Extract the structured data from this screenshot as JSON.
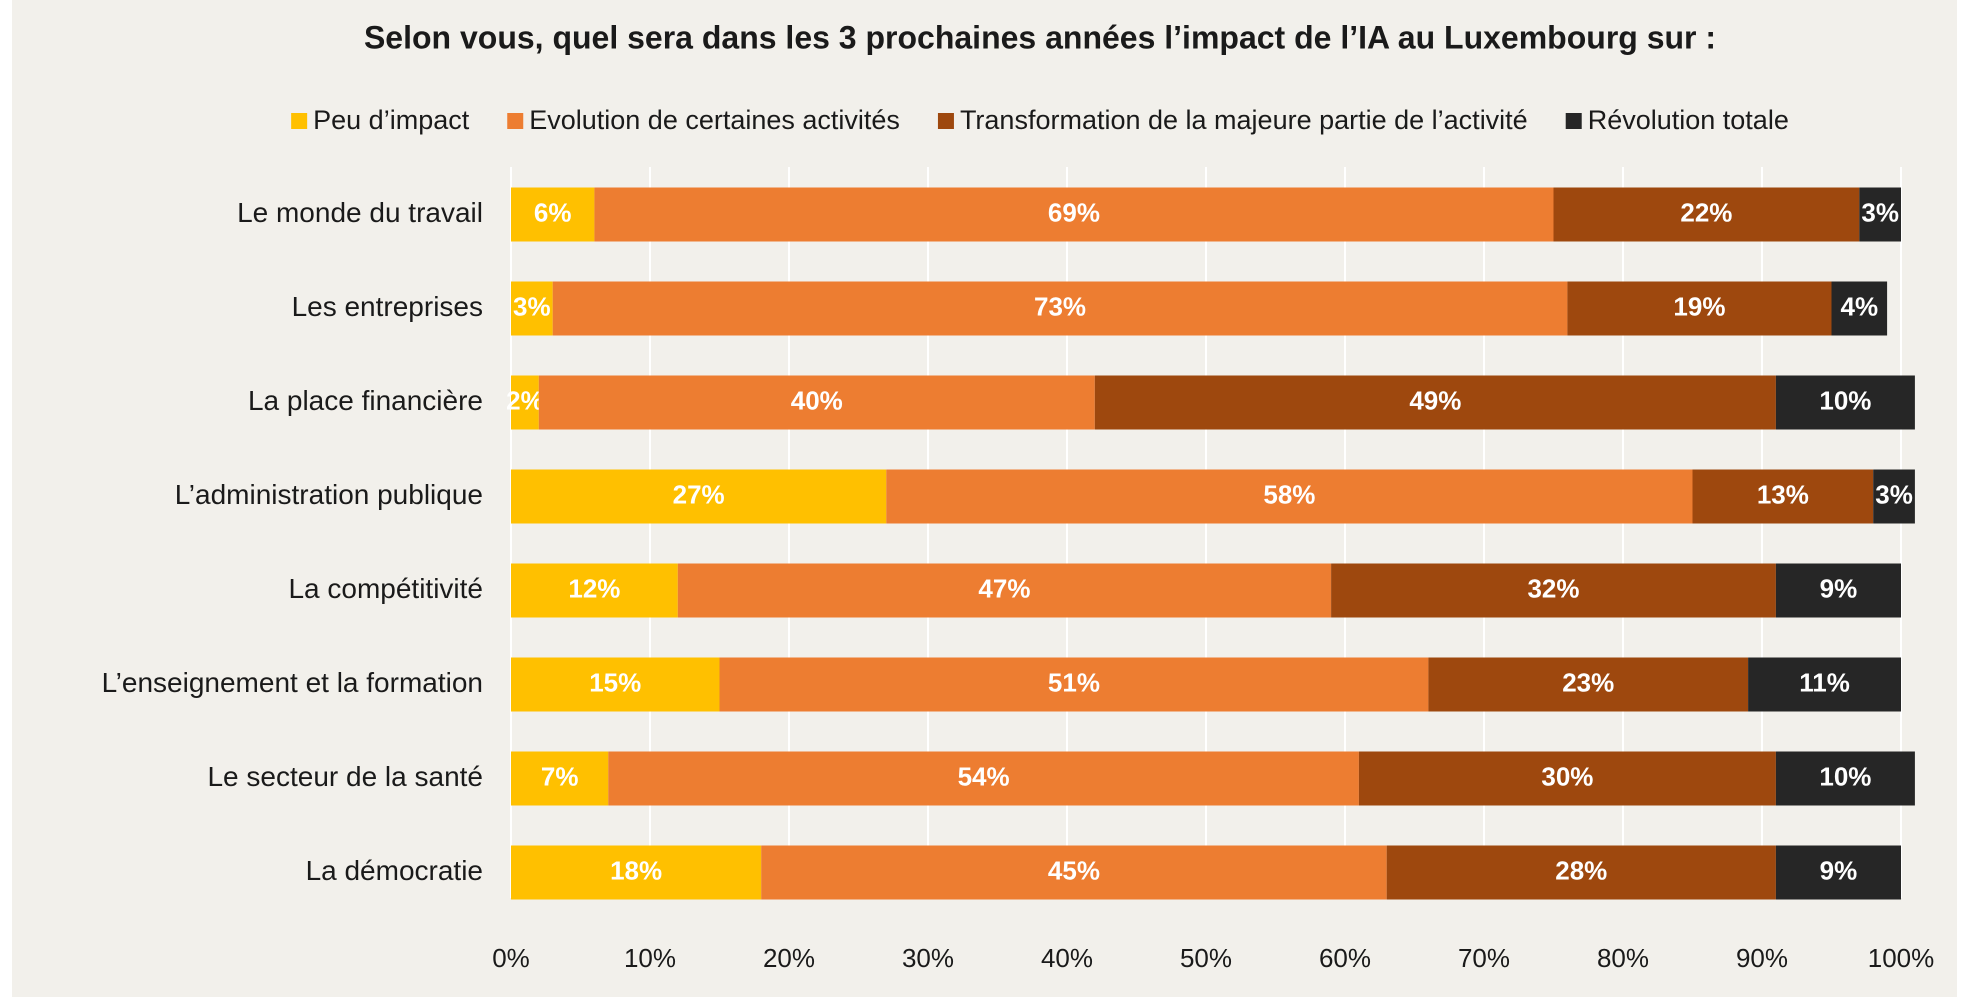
{
  "chart_data": {
    "type": "stacked-bar-horizontal",
    "title": "Selon vous, quel sera dans les 3 prochaines années l’impact de l’IA au Luxembourg sur :",
    "categories": [
      "Le monde du travail",
      "Les entreprises",
      "La place financière",
      "L’administration publique",
      "La compétitivité",
      "L’enseignement et la formation",
      "Le secteur de la santé",
      "La démocratie"
    ],
    "series": [
      {
        "name": "Peu d’impact",
        "color": "#ffc000",
        "values": [
          6,
          3,
          2,
          27,
          12,
          15,
          7,
          18
        ],
        "value_labels": [
          "6%",
          "3%",
          "2%",
          "27%",
          "12%",
          "15%",
          "7%",
          "18%"
        ]
      },
      {
        "name": "Evolution de certaines activités",
        "color": "#ed7d31",
        "values": [
          69,
          73,
          40,
          58,
          47,
          51,
          54,
          45
        ],
        "value_labels": [
          "69%",
          "73%",
          "40%",
          "58%",
          "47%",
          "51%",
          "54%",
          "45%"
        ]
      },
      {
        "name": "Transformation de la majeure partie de l’activité",
        "color": "#9e480e",
        "values": [
          22,
          19,
          49,
          13,
          32,
          23,
          30,
          28
        ],
        "value_labels": [
          "22%",
          "19%",
          "49%",
          "13%",
          "32%",
          "23%",
          "30%",
          "28%"
        ]
      },
      {
        "name": "Révolution totale",
        "color": "#262626",
        "values": [
          3,
          4,
          10,
          3,
          9,
          11,
          10,
          9
        ],
        "value_labels": [
          "3%",
          "4%",
          "10%",
          "3%",
          "9%",
          "11%",
          "10%",
          "9%"
        ]
      }
    ],
    "xlim": [
      0,
      100
    ],
    "xticks": [
      {
        "value": 0,
        "label": "0%"
      },
      {
        "value": 10,
        "label": "10%"
      },
      {
        "value": 20,
        "label": "20%"
      },
      {
        "value": 30,
        "label": "30%"
      },
      {
        "value": 40,
        "label": "40%"
      },
      {
        "value": 50,
        "label": "50%"
      },
      {
        "value": 60,
        "label": "60%"
      },
      {
        "value": 70,
        "label": "70%"
      },
      {
        "value": 80,
        "label": "80%"
      },
      {
        "value": 90,
        "label": "90%"
      },
      {
        "value": 100,
        "label": "100%"
      }
    ],
    "grid": true,
    "legend": "top"
  }
}
